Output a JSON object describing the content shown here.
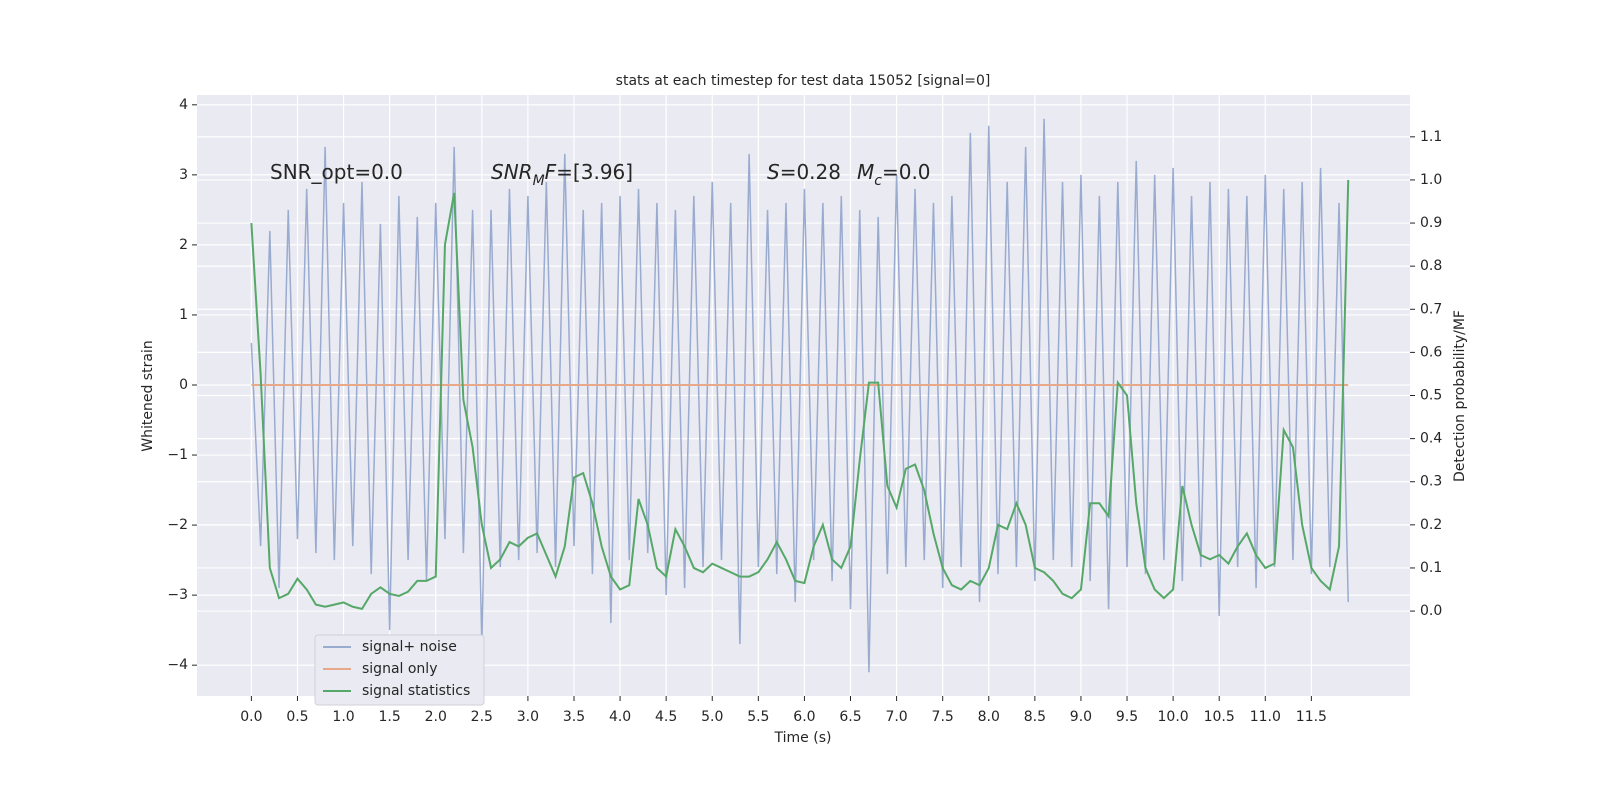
{
  "chart_data": {
    "type": "line",
    "title": "stats at each timestep for test data 15052 [signal=0]",
    "xlabel": "Time (s)",
    "ylabel": "Whitened strain",
    "y2label": "Detection probability/MF",
    "x": [
      0,
      0.1,
      0.2,
      0.3,
      0.4,
      0.5,
      0.6,
      0.7,
      0.8,
      0.9,
      1,
      1.1,
      1.2,
      1.3,
      1.4,
      1.5,
      1.6,
      1.7,
      1.8,
      1.9,
      2,
      2.1,
      2.2,
      2.3,
      2.4,
      2.5,
      2.6,
      2.7,
      2.8,
      2.9,
      3,
      3.1,
      3.2,
      3.3,
      3.4,
      3.5,
      3.6,
      3.7,
      3.8,
      3.9,
      4,
      4.1,
      4.2,
      4.3,
      4.4,
      4.5,
      4.6,
      4.7,
      4.8,
      4.9,
      5,
      5.1,
      5.2,
      5.3,
      5.4,
      5.5,
      5.6,
      5.7,
      5.8,
      5.9,
      6,
      6.1,
      6.2,
      6.3,
      6.4,
      6.5,
      6.6,
      6.7,
      6.8,
      6.9,
      7,
      7.1,
      7.2,
      7.3,
      7.4,
      7.5,
      7.6,
      7.7,
      7.8,
      7.9,
      8,
      8.1,
      8.2,
      8.3,
      8.4,
      8.5,
      8.6,
      8.7,
      8.8,
      8.9,
      9,
      9.1,
      9.2,
      9.3,
      9.4,
      9.5,
      9.6,
      9.7,
      9.8,
      9.9,
      10,
      10.1,
      10.2,
      10.3,
      10.4,
      10.5,
      10.6,
      10.7,
      10.8,
      10.9,
      11,
      11.1,
      11.2,
      11.3,
      11.4,
      11.5,
      11.6,
      11.7,
      11.8,
      11.9
    ],
    "series": [
      {
        "name": "signal+ noise",
        "color": "#9aabd0",
        "values": [
          0.6,
          -2.3,
          2.2,
          -2.9,
          2.5,
          -2.2,
          2.8,
          -2.4,
          3.4,
          -2.5,
          2.6,
          -2.3,
          2.9,
          -2.7,
          2.3,
          -3.5,
          2.7,
          -2.5,
          2.4,
          -2.8,
          2.6,
          -2.2,
          3.4,
          -2.4,
          2.5,
          -3.7,
          2.5,
          -2.6,
          2.8,
          -2.5,
          2.7,
          -2.4,
          2.9,
          -2.6,
          3.3,
          -2.3,
          2.5,
          -2.7,
          2.6,
          -3.4,
          2.7,
          -2.5,
          2.8,
          -2.4,
          2.6,
          -3.0,
          2.5,
          -2.9,
          2.7,
          -2.6,
          2.9,
          -2.5,
          2.6,
          -3.7,
          3.3,
          -2.6,
          2.5,
          -2.7,
          2.6,
          -3.1,
          2.8,
          -2.5,
          2.6,
          -2.8,
          2.7,
          -3.2,
          2.5,
          -4.1,
          2.4,
          -2.7,
          3.0,
          -2.6,
          2.8,
          -2.5,
          2.6,
          -2.9,
          2.7,
          -2.6,
          3.6,
          -3.1,
          3.7,
          -2.7,
          2.9,
          -2.6,
          3.4,
          -2.8,
          3.8,
          -2.5,
          2.9,
          -2.6,
          3.0,
          -2.8,
          2.7,
          -3.2,
          2.9,
          -2.6,
          3.2,
          -2.7,
          3.0,
          -2.5,
          3.1,
          -2.8,
          2.7,
          -2.6,
          2.9,
          -3.3,
          2.8,
          -2.6,
          2.7,
          -2.9,
          3.0,
          -2.6,
          2.8,
          -2.5,
          2.9,
          -2.7,
          3.1,
          -2.6,
          2.6,
          -3.1
        ]
      },
      {
        "name": "signal only",
        "color": "#e8a98a",
        "values": [
          0,
          0,
          0,
          0,
          0,
          0,
          0,
          0,
          0,
          0,
          0,
          0,
          0,
          0,
          0,
          0,
          0,
          0,
          0,
          0,
          0,
          0,
          0,
          0,
          0,
          0,
          0,
          0,
          0,
          0,
          0,
          0,
          0,
          0,
          0,
          0,
          0,
          0,
          0,
          0,
          0,
          0,
          0,
          0,
          0,
          0,
          0,
          0,
          0,
          0,
          0,
          0,
          0,
          0,
          0,
          0,
          0,
          0,
          0,
          0,
          0,
          0,
          0,
          0,
          0,
          0,
          0,
          0,
          0,
          0,
          0,
          0,
          0,
          0,
          0,
          0,
          0,
          0,
          0,
          0,
          0,
          0,
          0,
          0,
          0,
          0,
          0,
          0,
          0,
          0,
          0,
          0,
          0,
          0,
          0,
          0,
          0,
          0,
          0,
          0,
          0,
          0,
          0,
          0,
          0,
          0,
          0,
          0,
          0,
          0,
          0,
          0,
          0,
          0,
          0,
          0,
          0,
          0,
          0,
          0
        ]
      },
      {
        "name": "signal statistics",
        "color": "#55a868",
        "axis": "y2",
        "values": [
          0.9,
          0.55,
          0.1,
          0.03,
          0.04,
          0.075,
          0.05,
          0.015,
          0.01,
          0.015,
          0.02,
          0.01,
          0.005,
          0.04,
          0.055,
          0.04,
          0.035,
          0.045,
          0.07,
          0.07,
          0.08,
          0.85,
          0.97,
          0.49,
          0.38,
          0.2,
          0.1,
          0.12,
          0.16,
          0.15,
          0.17,
          0.18,
          0.13,
          0.08,
          0.15,
          0.31,
          0.32,
          0.25,
          0.15,
          0.08,
          0.05,
          0.06,
          0.26,
          0.2,
          0.1,
          0.08,
          0.19,
          0.15,
          0.1,
          0.09,
          0.11,
          0.1,
          0.09,
          0.08,
          0.08,
          0.09,
          0.12,
          0.16,
          0.12,
          0.07,
          0.065,
          0.15,
          0.2,
          0.12,
          0.1,
          0.15,
          0.35,
          0.53,
          0.53,
          0.29,
          0.24,
          0.33,
          0.34,
          0.28,
          0.18,
          0.1,
          0.06,
          0.05,
          0.07,
          0.06,
          0.1,
          0.2,
          0.19,
          0.25,
          0.2,
          0.1,
          0.09,
          0.07,
          0.04,
          0.03,
          0.05,
          0.25,
          0.25,
          0.22,
          0.53,
          0.5,
          0.25,
          0.1,
          0.05,
          0.03,
          0.05,
          0.29,
          0.2,
          0.13,
          0.12,
          0.13,
          0.11,
          0.15,
          0.18,
          0.13,
          0.1,
          0.11,
          0.42,
          0.38,
          0.2,
          0.1,
          0.07,
          0.05,
          0.15,
          1.0
        ]
      }
    ],
    "xlim": [
      -0.59,
      12.57
    ],
    "xticks": [
      {
        "value": 0,
        "label": "0.0"
      },
      0.5,
      {
        "value": 1,
        "label": "1.0"
      },
      1.5,
      {
        "value": 2,
        "label": "2.0"
      },
      2.5,
      {
        "value": 3,
        "label": "3.0"
      },
      3.5,
      {
        "value": 4,
        "label": "4.0"
      },
      4.5,
      {
        "value": 5,
        "label": "5.0"
      },
      5.5,
      {
        "value": 6,
        "label": "6.0"
      },
      6.5,
      {
        "value": 7,
        "label": "7.0"
      },
      7.5,
      {
        "value": 8,
        "label": "8.0"
      },
      8.5,
      {
        "value": 9,
        "label": "9.0"
      },
      9.5,
      {
        "value": 10,
        "label": "10.0"
      },
      10.5,
      {
        "value": 11,
        "label": "11.0"
      },
      11.5
    ],
    "ylim": [
      -4.44,
      4.14
    ],
    "yticks": [
      {
        "value": -4,
        "label": "−4"
      },
      {
        "value": -3,
        "label": "−3"
      },
      {
        "value": -2,
        "label": "−2"
      },
      {
        "value": -1,
        "label": "−1"
      },
      0,
      1,
      2,
      3,
      4
    ],
    "y2lim": [
      -0.197,
      1.197
    ],
    "y2ticks": [
      {
        "value": 0,
        "label": "0.0"
      },
      0.1,
      0.2,
      0.3,
      0.4,
      0.5,
      0.6,
      0.7,
      0.8,
      0.9,
      {
        "value": 1,
        "label": "1.0"
      },
      1.1
    ],
    "grid": true,
    "legend": "lower left",
    "annotations": [
      {
        "parts": [
          {
            "text": "SNR_opt=0.0"
          }
        ]
      },
      {
        "parts": [
          {
            "text": "SNR",
            "italic": true
          },
          {
            "text": "M",
            "italic": true,
            "sub": true
          },
          {
            "text": "F",
            "italic": true
          },
          {
            "text": "=[3.96]"
          }
        ]
      },
      {
        "parts": [
          {
            "text": "S",
            "italic": true
          },
          {
            "text": "=0.28"
          },
          {
            "text": "M",
            "italic": true,
            "space": true
          },
          {
            "text": "c",
            "italic": true,
            "sub": true
          },
          {
            "text": "=0.0"
          }
        ]
      }
    ]
  }
}
